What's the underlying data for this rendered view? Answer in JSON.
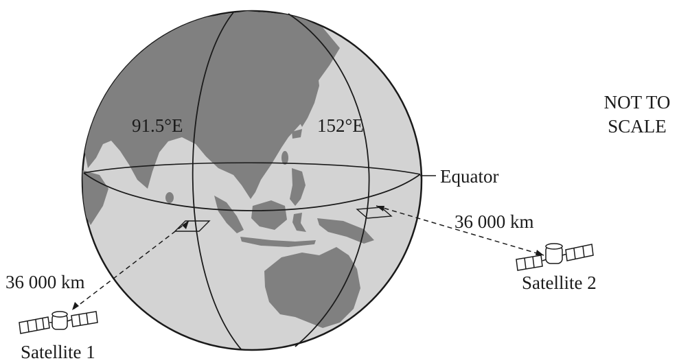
{
  "labels": {
    "longitude_1": "91.5°E",
    "longitude_2": "152°E",
    "equator": "Equator",
    "scale_note_line1": "NOT TO",
    "scale_note_line2": "SCALE",
    "distance_1": "36 000 km",
    "distance_2": "36 000 km",
    "satellite_1": "Satellite 1",
    "satellite_2": "Satellite 2"
  },
  "colors": {
    "ocean": "#d3d3d3",
    "land": "#808080",
    "outline": "#1a1a1a"
  }
}
